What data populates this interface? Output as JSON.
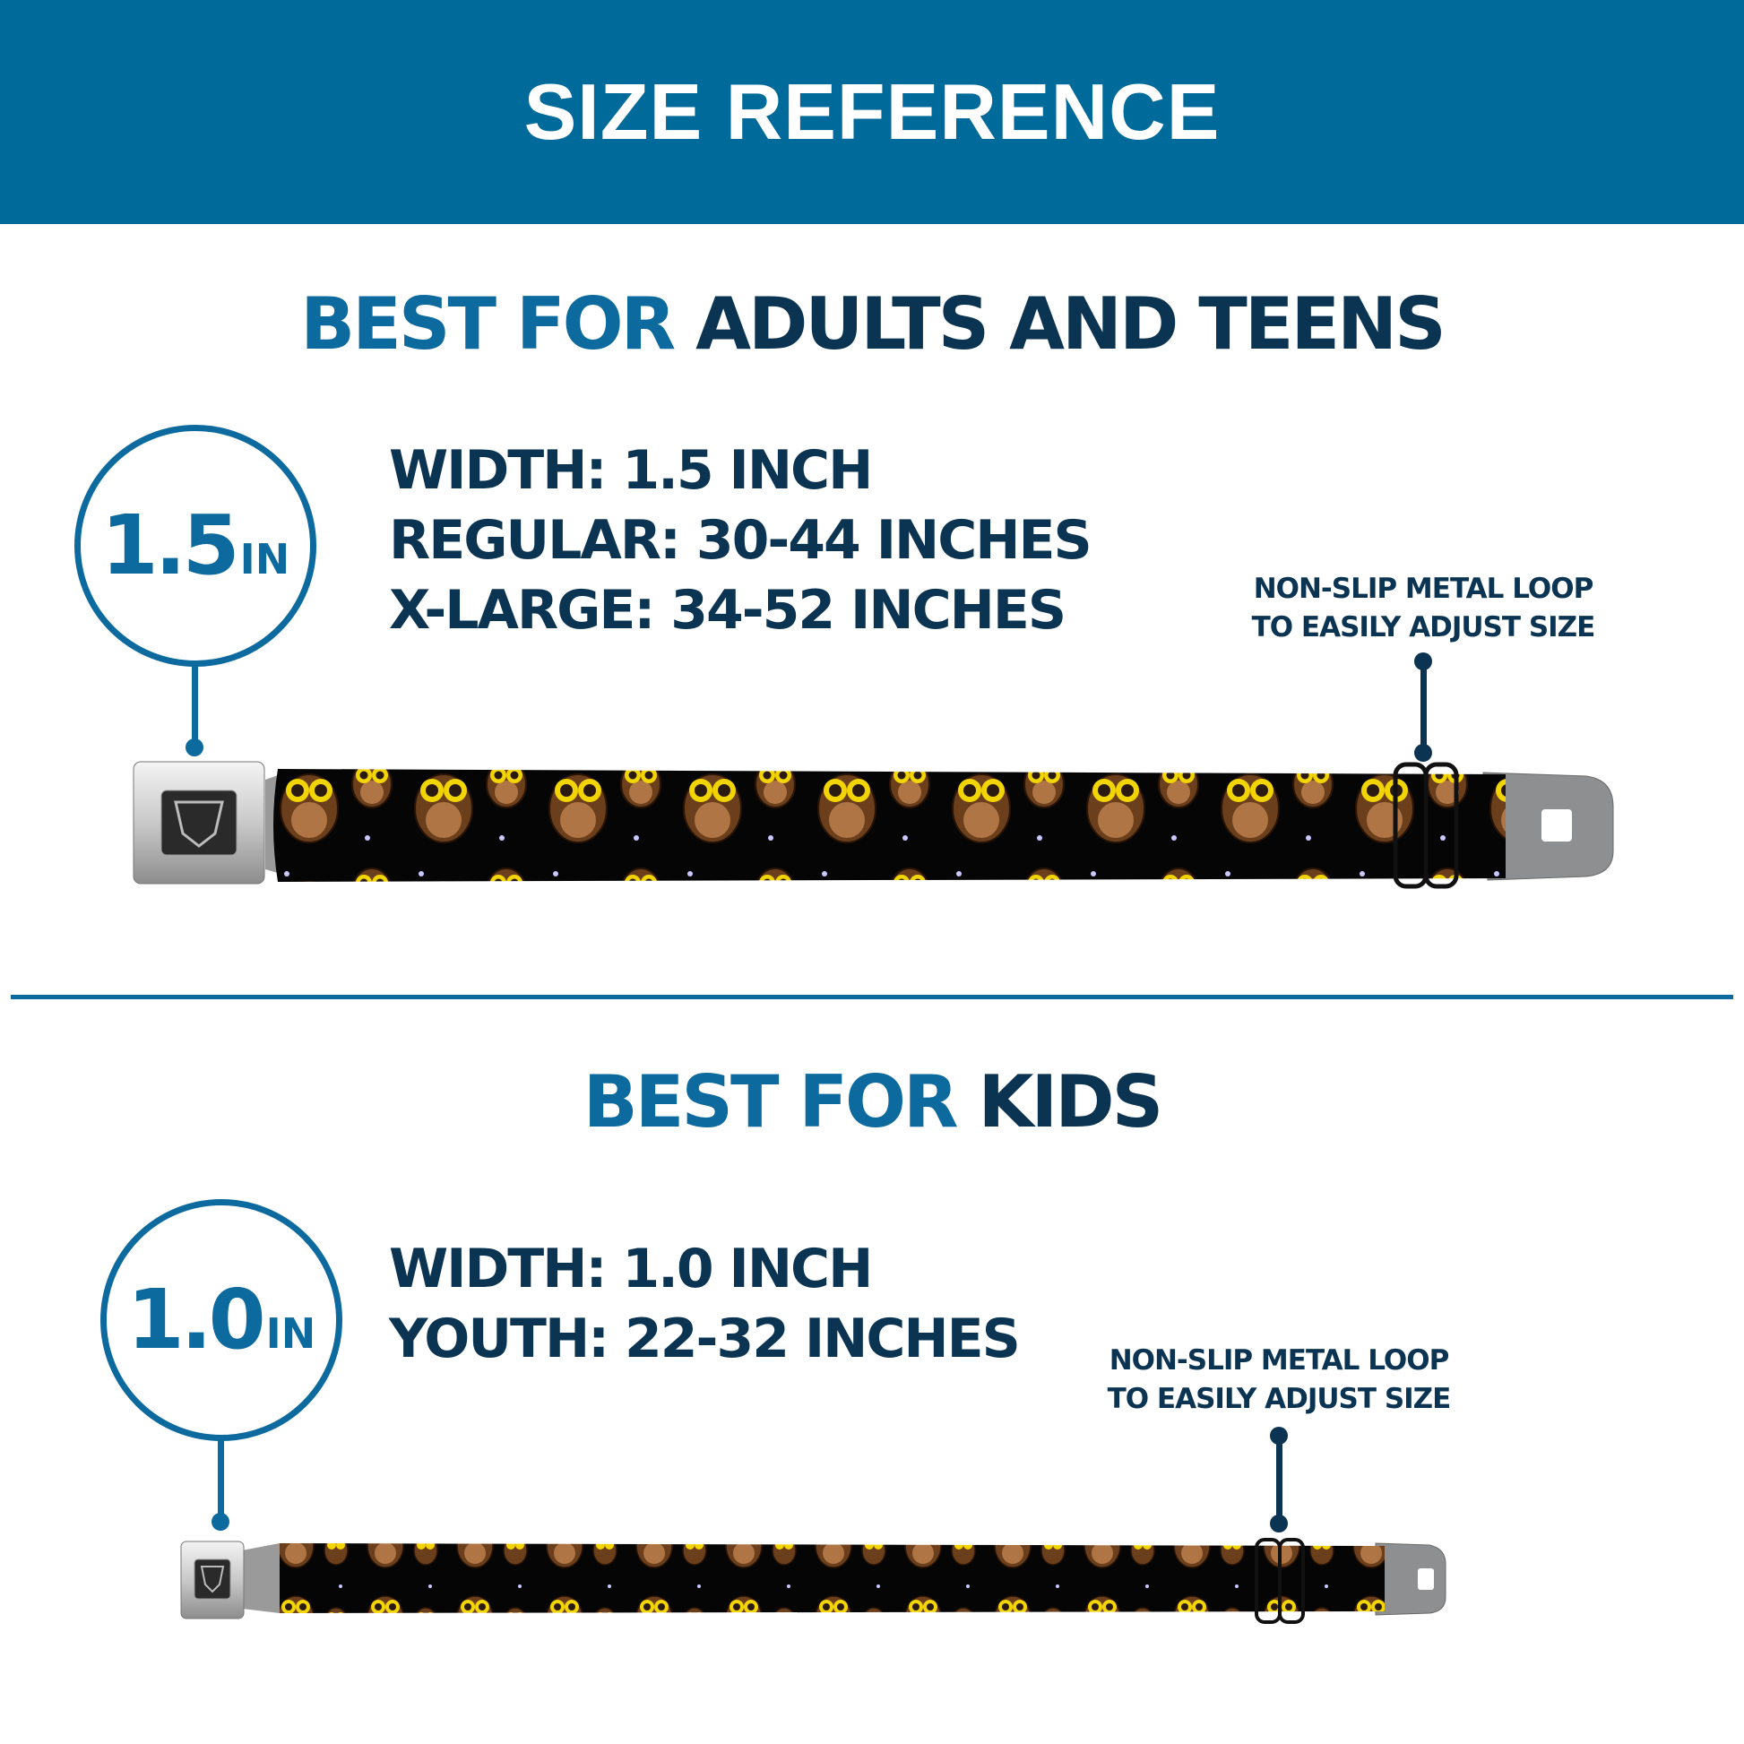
{
  "header": {
    "title": "SIZE REFERENCE"
  },
  "adults": {
    "title_prefix": "BEST FOR",
    "title_main": "ADULTS AND TEENS",
    "badge_number": "1.5",
    "badge_unit": "IN",
    "specs": [
      "WIDTH: 1.5 INCH",
      "REGULAR: 30-44 INCHES",
      "X-LARGE: 34-52 INCHES"
    ],
    "callout": [
      "NON-SLIP METAL LOOP",
      "TO EASILY ADJUST SIZE"
    ]
  },
  "kids": {
    "title_prefix": "BEST FOR",
    "title_main": "KIDS",
    "badge_number": "1.0",
    "badge_unit": "IN",
    "specs": [
      "WIDTH: 1.0 INCH",
      "YOUTH: 22-32 INCHES"
    ],
    "callout": [
      "NON-SLIP METAL LOOP",
      "TO EASILY ADJUST SIZE"
    ]
  },
  "colors": {
    "header": "#006a9a",
    "accent_blue": "#0d6a9e",
    "dark_navy": "#0b3452",
    "owl_brown": "#6b3f1c",
    "owl_eye": "#f2d400"
  }
}
